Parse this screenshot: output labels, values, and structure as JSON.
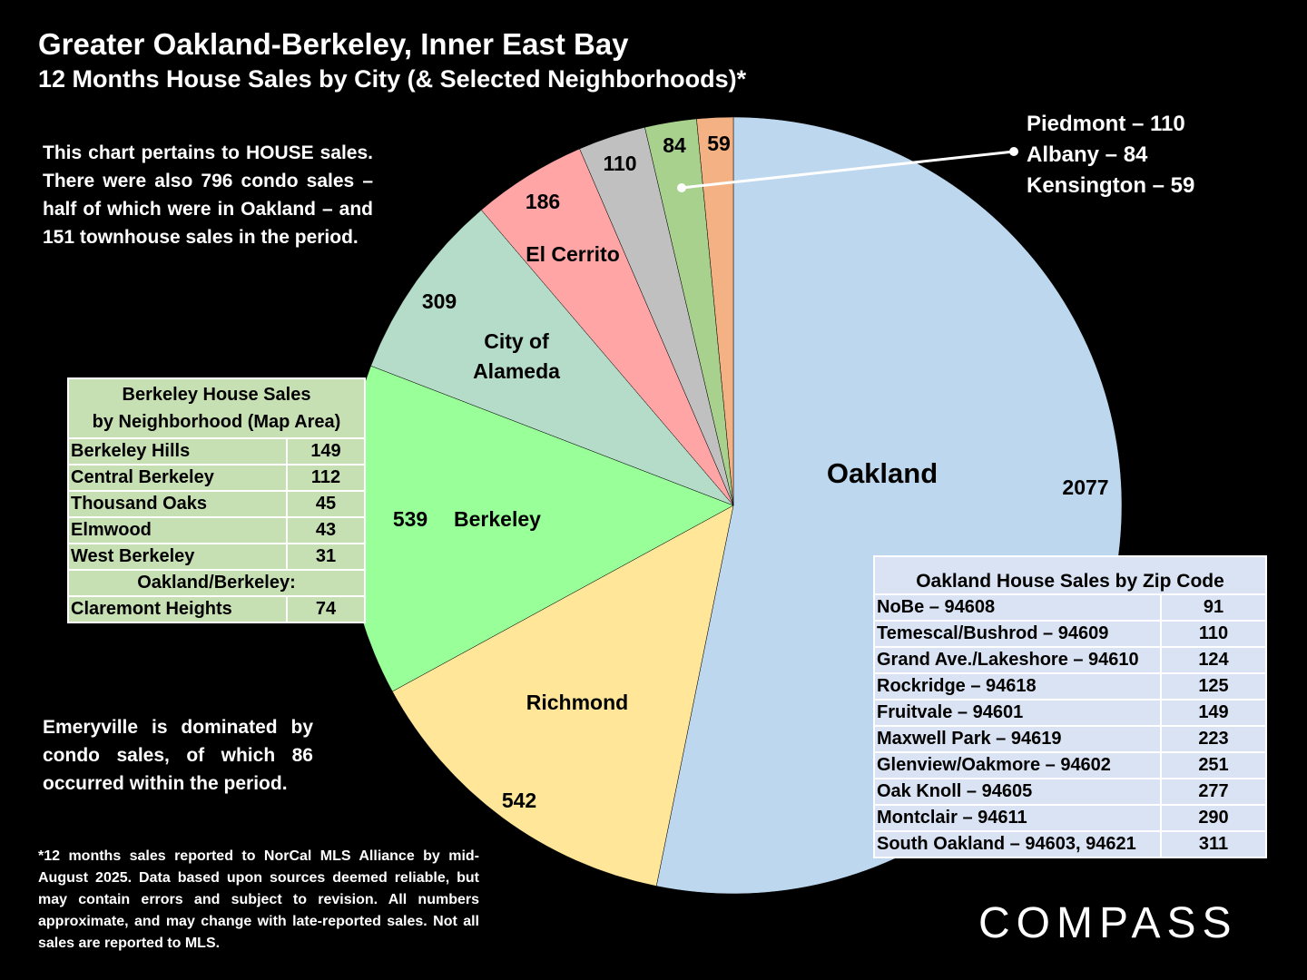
{
  "header": {
    "title": "Greater Oakland-Berkeley, Inner East Bay",
    "subtitle": "12 Months House Sales by City (& Selected Neighborhoods)*"
  },
  "notes": {
    "top": "This chart pertains to HOUSE sales. There were also 796 condo sales – half of which were in Oakland – and 151 townhouse sales in the period.",
    "emeryville": "Emeryville is dominated by condo sales, of which 86 occurred within the period.",
    "footnote": "*12 months sales reported to NorCal MLS Alliance by mid-August 2025. Data based upon sources deemed reliable, but may contain errors and subject to revision. All numbers approximate, and may change with late-reported sales. Not all sales are reported to MLS."
  },
  "callout": {
    "lines": [
      "Piedmont – 110",
      "Albany – 84",
      "Kensington – 59"
    ]
  },
  "chart_data": {
    "type": "pie",
    "slices": [
      {
        "name": "Oakland",
        "value": 2077,
        "color": "#bdd7ee"
      },
      {
        "name": "Richmond",
        "value": 542,
        "color": "#ffe699"
      },
      {
        "name": "Berkeley",
        "value": 539,
        "color": "#99ff99"
      },
      {
        "name": "City of Alameda",
        "value": 309,
        "color": "#b4dcc8"
      },
      {
        "name": "El Cerrito",
        "value": 186,
        "color": "#ffa5a5"
      },
      {
        "name": "",
        "value": 110,
        "color": "#c0c0c0"
      },
      {
        "name": "",
        "value": 84,
        "color": "#a9d18e"
      },
      {
        "name": "",
        "value": 59,
        "color": "#f4b183"
      }
    ]
  },
  "berkeley_table": {
    "title_line1": "Berkeley House Sales",
    "title_line2": "by Neighborhood (Map Area)",
    "rows": [
      {
        "name": "Berkeley Hills",
        "value": "149"
      },
      {
        "name": "Central Berkeley",
        "value": "112"
      },
      {
        "name": "Thousand Oaks",
        "value": "45"
      },
      {
        "name": "Elmwood",
        "value": "43"
      },
      {
        "name": "West Berkeley",
        "value": "31"
      }
    ],
    "subheader": "Oakland/Berkeley:",
    "extra_row": {
      "name": "Claremont Heights",
      "value": "74"
    }
  },
  "oakland_table": {
    "title": "Oakland House Sales by Zip Code",
    "rows": [
      {
        "name": "NoBe – 94608",
        "value": "91"
      },
      {
        "name": "Temescal/Bushrod – 94609",
        "value": "110"
      },
      {
        "name": "Grand Ave./Lakeshore – 94610",
        "value": "124"
      },
      {
        "name": "Rockridge – 94618",
        "value": "125"
      },
      {
        "name": "Fruitvale – 94601",
        "value": "149"
      },
      {
        "name": "Maxwell Park – 94619",
        "value": "223"
      },
      {
        "name": "Glenview/Oakmore – 94602",
        "value": "251"
      },
      {
        "name": "Oak Knoll – 94605",
        "value": "277"
      },
      {
        "name": "Montclair – 94611",
        "value": "290"
      },
      {
        "name": "South Oakland – 94603, 94621",
        "value": "311"
      }
    ]
  },
  "logo": "COMPASS"
}
